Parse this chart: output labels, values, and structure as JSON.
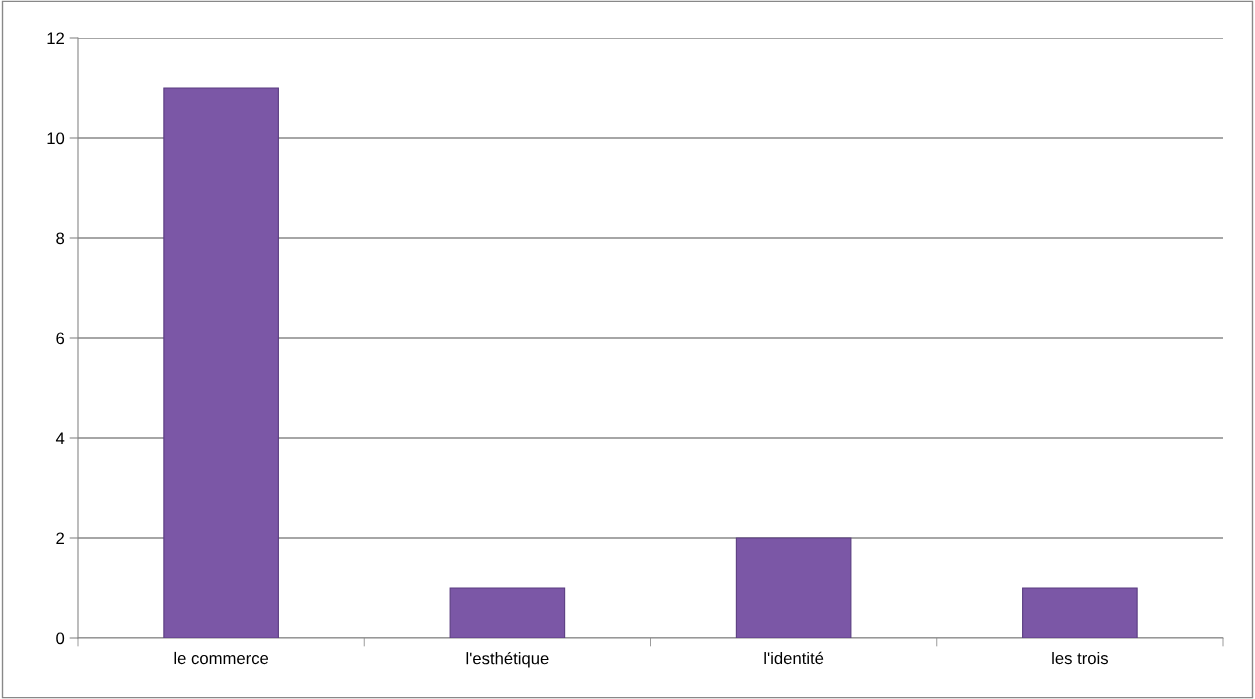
{
  "chart_data": {
    "type": "bar",
    "categories": [
      "le commerce",
      "l'esthétique",
      "l'identité",
      "les trois"
    ],
    "values": [
      11,
      1,
      2,
      1
    ],
    "color": "#7b57a6",
    "ylim": [
      0,
      12
    ],
    "yticks": [
      0,
      2,
      4,
      6,
      8,
      10,
      12
    ],
    "grid": "y"
  }
}
